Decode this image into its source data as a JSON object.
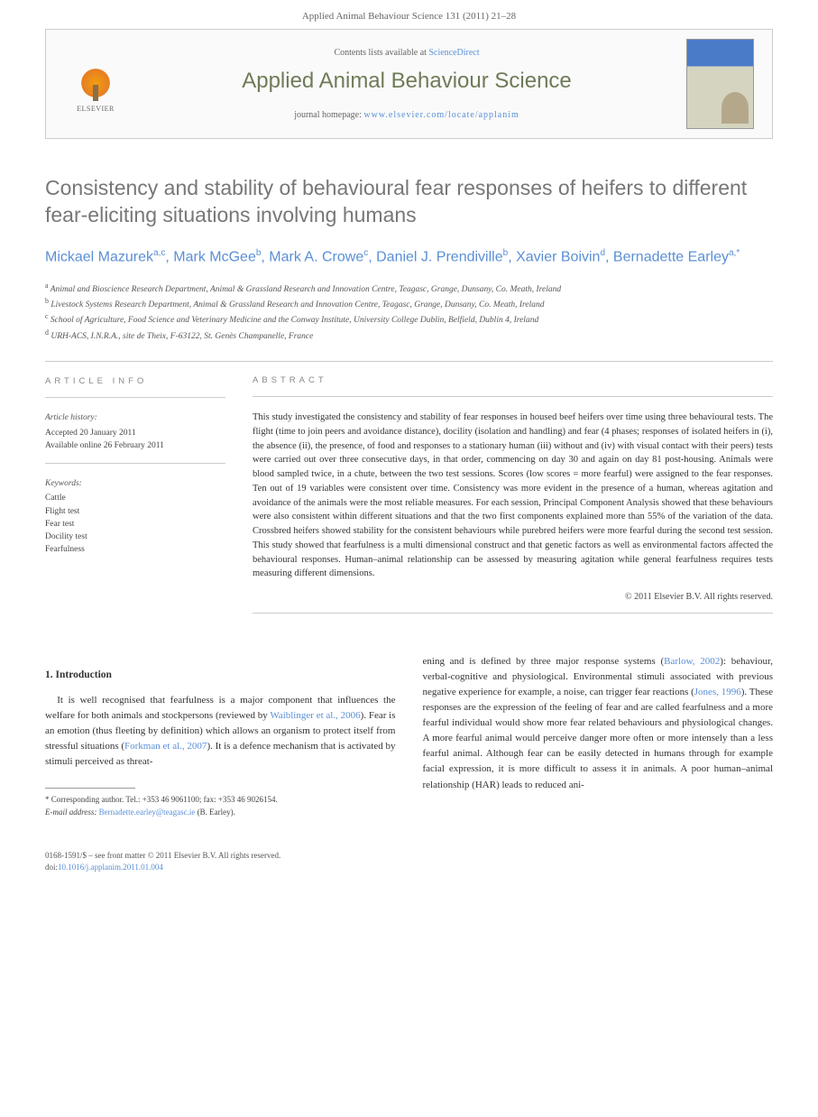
{
  "header": {
    "citation": "Applied Animal Behaviour Science 131 (2011) 21–28",
    "contents_label": "Contents lists available at",
    "contents_link": "ScienceDirect",
    "journal_name": "Applied Animal Behaviour Science",
    "homepage_label": "journal homepage:",
    "homepage_url": "www.elsevier.com/locate/applanim",
    "publisher": "ELSEVIER"
  },
  "article": {
    "title": "Consistency and stability of behavioural fear responses of heifers to different fear-eliciting situations involving humans",
    "authors_html": "Mickael Mazurek<sup>a,c</sup>, Mark McGee<sup>b</sup>, Mark A. Crowe<sup>c</sup>, Daniel J. Prendiville<sup>b</sup>, Xavier Boivin<sup>d</sup>, Bernadette Earley<sup>a,*</sup>",
    "affiliations": [
      {
        "sup": "a",
        "text": "Animal and Bioscience Research Department, Animal & Grassland Research and Innovation Centre, Teagasc, Grange, Dunsany, Co. Meath, Ireland"
      },
      {
        "sup": "b",
        "text": "Livestock Systems Research Department, Animal & Grassland Research and Innovation Centre, Teagasc, Grange, Dunsany, Co. Meath, Ireland"
      },
      {
        "sup": "c",
        "text": "School of Agriculture, Food Science and Veterinary Medicine and the Conway Institute, University College Dublin, Belfield, Dublin 4, Ireland"
      },
      {
        "sup": "d",
        "text": "URH-ACS, I.N.R.A., site de Theix, F-63122, St. Genès Champanelle, France"
      }
    ]
  },
  "info": {
    "heading": "ARTICLE INFO",
    "history_label": "Article history:",
    "accepted": "Accepted 20 January 2011",
    "available": "Available online 26 February 2011",
    "keywords_label": "Keywords:",
    "keywords": [
      "Cattle",
      "Flight test",
      "Fear test",
      "Docility test",
      "Fearfulness"
    ]
  },
  "abstract": {
    "heading": "ABSTRACT",
    "text": "This study investigated the consistency and stability of fear responses in housed beef heifers over time using three behavioural tests. The flight (time to join peers and avoidance distance), docility (isolation and handling) and fear (4 phases; responses of isolated heifers in (i), the absence (ii), the presence, of food and responses to a stationary human (iii) without and (iv) with visual contact with their peers) tests were carried out over three consecutive days, in that order, commencing on day 30 and again on day 81 post-housing. Animals were blood sampled twice, in a chute, between the two test sessions. Scores (low scores = more fearful) were assigned to the fear responses. Ten out of 19 variables were consistent over time. Consistency was more evident in the presence of a human, whereas agitation and avoidance of the animals were the most reliable measures. For each session, Principal Component Analysis showed that these behaviours were also consistent within different situations and that the two first components explained more than 55% of the variation of the data. Crossbred heifers showed stability for the consistent behaviours while purebred heifers were more fearful during the second test session. This study showed that fearfulness is a multi dimensional construct and that genetic factors as well as environmental factors affected the behavioural responses. Human–animal relationship can be assessed by measuring agitation while general fearfulness requires tests measuring different dimensions.",
    "copyright": "© 2011 Elsevier B.V. All rights reserved."
  },
  "intro": {
    "heading": "1. Introduction",
    "col1": "It is well recognised that fearfulness is a major component that influences the welfare for both animals and stockpersons (reviewed by Waiblinger et al., 2006). Fear is an emotion (thus fleeting by definition) which allows an organism to protect itself from stressful situations (Forkman et al., 2007). It is a defence mechanism that is activated by stimuli perceived as threat-",
    "col2": "ening and is defined by three major response systems (Barlow, 2002): behaviour, verbal-cognitive and physiological. Environmental stimuli associated with previous negative experience for example, a noise, can trigger fear reactions (Jones, 1996). These responses are the expression of the feeling of fear and are called fearfulness and a more fearful individual would show more fear related behaviours and physiological changes. A more fearful animal would perceive danger more often or more intensely than a less fearful animal. Although fear can be easily detected in humans through for example facial expression, it is more difficult to assess it in animals. A poor human–animal relationship (HAR) leads to reduced ani-",
    "refs": {
      "waiblinger": "Waiblinger et al., 2006",
      "forkman": "Forkman et al., 2007",
      "barlow": "Barlow, 2002",
      "jones": "Jones, 1996"
    }
  },
  "footnote": {
    "corresponding": "* Corresponding author. Tel.: +353 46 9061100; fax: +353 46 9026154.",
    "email_label": "E-mail address:",
    "email": "Bernadette.earley@teagasc.ie",
    "email_who": "(B. Earley)."
  },
  "footer": {
    "issn": "0168-1591/$ – see front matter © 2011 Elsevier B.V. All rights reserved.",
    "doi_label": "doi:",
    "doi": "10.1016/j.applanim.2011.01.004"
  },
  "colors": {
    "journal_title_color": "#6e7b57",
    "link_color": "#5a8fd6",
    "heading_gray": "#888",
    "text_color": "#333"
  }
}
